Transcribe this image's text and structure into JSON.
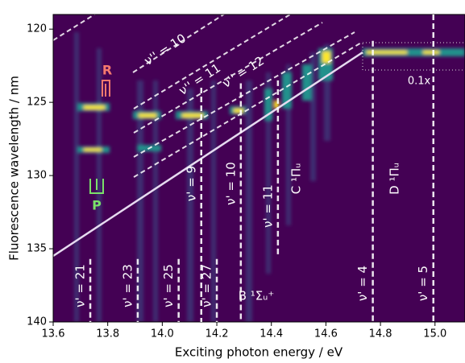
{
  "chart_data": {
    "type": "heatmap",
    "xlabel": "Exciting photon energy / eV",
    "ylabel": "Fluorescence wavelength / nm",
    "xlim": [
      13.6,
      15.11
    ],
    "ylim": [
      119,
      140
    ],
    "y_inverted": true,
    "xticks": [
      13.6,
      13.8,
      {
        "value": 14,
        "label": "14.0"
      },
      14.2,
      14.4,
      14.6,
      14.8,
      {
        "value": 15,
        "label": "15.0"
      }
    ],
    "yticks": [
      120,
      125,
      130,
      135,
      140
    ],
    "vlines": [
      {
        "x": 13.736,
        "ymin": 135.7,
        "ymax": 140,
        "label": "ν' = 21"
      },
      {
        "x": 13.91,
        "ymin": 135.7,
        "ymax": 140,
        "label": "ν' = 23"
      },
      {
        "x": 14.06,
        "ymin": 135.7,
        "ymax": 140,
        "label": "ν' = 25"
      },
      {
        "x": 14.2,
        "ymin": 135.7,
        "ymax": 140,
        "label": "ν' = 27"
      },
      {
        "x": 14.143,
        "ymin": 124,
        "ymax": 140,
        "label": "ν' = 9"
      },
      {
        "x": 14.288,
        "ymin": 123.7,
        "ymax": 140,
        "label": "ν' = 10"
      },
      {
        "x": 14.424,
        "ymin": 123.5,
        "ymax": 135.5,
        "label": "ν' = 11"
      },
      {
        "x": 14.772,
        "ymin": 120.8,
        "ymax": 140,
        "label": "ν' = 4"
      },
      {
        "x": 14.994,
        "ymin": 119,
        "ymax": 140,
        "label": "ν' = 5"
      }
    ],
    "diagonal_labels": [
      "ν'' = 10",
      "ν'' = 11",
      "ν'' = 12"
    ],
    "branch_labels": [
      {
        "text": "R",
        "color": "#f47a6e"
      },
      {
        "text": "P",
        "color": "#7be06a"
      }
    ],
    "state_labels": [
      "C ¹Πᵤ",
      "D ¹Πᵤ",
      "B ¹Σᵤ⁺"
    ],
    "scale_note": "0.1x"
  }
}
